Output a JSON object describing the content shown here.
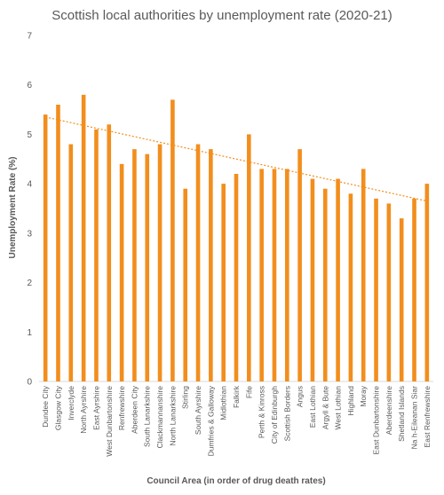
{
  "chart_data": {
    "type": "bar",
    "title": "Scottish local authorities by unemployment rate (2020-21)",
    "xlabel": "Council Area (in order of drug death rates)",
    "ylabel": "Unemployment Rate (%)",
    "ylim": [
      0,
      7
    ],
    "yticks": [
      "0",
      "1",
      "2",
      "3",
      "4",
      "5",
      "6",
      "7"
    ],
    "grid": false,
    "trendline": {
      "type": "linear",
      "style": "dotted",
      "start": 5.35,
      "end": 3.65
    },
    "bar_color": "#f28e1d",
    "categories": [
      "Dundee City",
      "Glasgow City",
      "Inverclyde",
      "North Ayrshire",
      "East Ayrshire",
      "West Dunbartonshire",
      "Renfrewshire",
      "Aberdeen City",
      "South Lanarkshire",
      "Clackmannanshire",
      "North Lanarkshire",
      "Stirling",
      "South Ayrshire",
      "Dumfries & Galloway",
      "Midlothian",
      "Falkirk",
      "Fife",
      "Perth & Kinross",
      "City of Edinburgh",
      "Scottish Borders",
      "Angus",
      "East Lothian",
      "Argyll & Bute",
      "West Lothian",
      "Highland",
      "Moray",
      "East Dunbartonshire",
      "Aberdeenshire",
      "Shetland Islands",
      "Na h-Eileanan Siar",
      "East Renfrewshire"
    ],
    "values": [
      5.4,
      5.6,
      4.8,
      5.8,
      5.1,
      5.2,
      4.4,
      4.7,
      4.6,
      4.8,
      5.7,
      3.9,
      4.8,
      4.7,
      4.0,
      4.2,
      5.0,
      4.3,
      4.3,
      4.3,
      4.7,
      4.1,
      3.9,
      4.1,
      3.8,
      4.3,
      3.7,
      3.6,
      3.3,
      3.7,
      4.0
    ]
  }
}
